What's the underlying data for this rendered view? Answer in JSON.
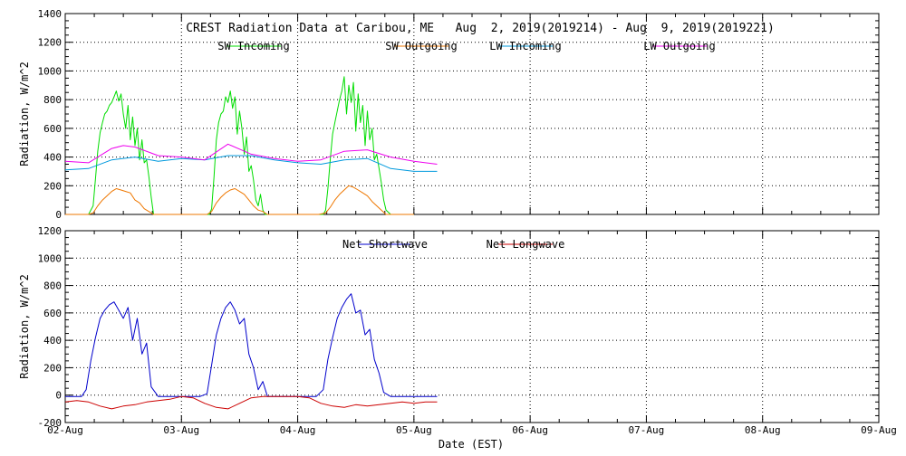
{
  "chart_data": [
    {
      "type": "line",
      "title": "CREST Radiation Data at Caribou, ME   Aug  2, 2019(2019214) - Aug  9, 2019(2019221)",
      "ylabel": "Radiation, W/m^2",
      "xlabel": "",
      "xlim": [
        0,
        7
      ],
      "ylim": [
        0,
        1400
      ],
      "yticks": [
        0,
        200,
        400,
        600,
        800,
        1000,
        1200,
        1400
      ],
      "grid": true,
      "legend": "top",
      "series": [
        {
          "name": "SW Incoming",
          "color": "#00dd00",
          "x": [
            0,
            0.08,
            0.12,
            0.16,
            0.2,
            0.24,
            0.26,
            0.28,
            0.3,
            0.32,
            0.34,
            0.36,
            0.38,
            0.4,
            0.42,
            0.44,
            0.46,
            0.48,
            0.5,
            0.52,
            0.54,
            0.56,
            0.58,
            0.6,
            0.62,
            0.64,
            0.66,
            0.68,
            0.7,
            0.72,
            0.74,
            0.76,
            0.8,
            1.0,
            1.08,
            1.16,
            1.2,
            1.24,
            1.26,
            1.28,
            1.3,
            1.32,
            1.34,
            1.36,
            1.38,
            1.4,
            1.42,
            1.44,
            1.46,
            1.48,
            1.5,
            1.52,
            1.54,
            1.56,
            1.58,
            1.6,
            1.62,
            1.64,
            1.66,
            1.68,
            1.7,
            1.72,
            1.74,
            1.76,
            1.8,
            2.0,
            2.08,
            2.14,
            2.18,
            2.22,
            2.24,
            2.26,
            2.28,
            2.3,
            2.32,
            2.34,
            2.36,
            2.38,
            2.4,
            2.42,
            2.44,
            2.46,
            2.48,
            2.5,
            2.52,
            2.54,
            2.56,
            2.58,
            2.6,
            2.62,
            2.64,
            2.66,
            2.68,
            2.7,
            2.72,
            2.74,
            2.76,
            2.8,
            3.0
          ],
          "values": [
            0,
            0,
            0,
            0,
            0,
            60,
            250,
            440,
            570,
            640,
            700,
            720,
            760,
            780,
            820,
            860,
            790,
            840,
            700,
            600,
            760,
            520,
            680,
            480,
            600,
            380,
            520,
            360,
            380,
            260,
            120,
            0,
            0,
            0,
            0,
            0,
            0,
            0,
            40,
            260,
            520,
            640,
            700,
            720,
            820,
            780,
            860,
            740,
            820,
            560,
            720,
            600,
            420,
            540,
            300,
            340,
            240,
            100,
            60,
            140,
            30,
            0,
            0,
            0,
            0,
            0,
            0,
            0,
            0,
            0,
            30,
            180,
            380,
            560,
            640,
            720,
            800,
            860,
            960,
            700,
            900,
            780,
            920,
            580,
            840,
            640,
            760,
            480,
            720,
            520,
            600,
            380,
            420,
            320,
            220,
            100,
            30,
            0,
            0
          ]
        },
        {
          "name": "SW Outgoing",
          "color": "#ee7700",
          "x": [
            0,
            0.08,
            0.14,
            0.2,
            0.24,
            0.28,
            0.32,
            0.36,
            0.4,
            0.44,
            0.48,
            0.52,
            0.56,
            0.6,
            0.64,
            0.68,
            0.72,
            0.76,
            0.8,
            1.0,
            1.16,
            1.22,
            1.26,
            1.3,
            1.34,
            1.38,
            1.42,
            1.46,
            1.5,
            1.54,
            1.58,
            1.62,
            1.66,
            1.7,
            1.74,
            1.8,
            2.0,
            2.18,
            2.24,
            2.28,
            2.32,
            2.36,
            2.4,
            2.44,
            2.48,
            2.52,
            2.56,
            2.6,
            2.64,
            2.68,
            2.72,
            2.76,
            2.8,
            3.0
          ],
          "values": [
            0,
            0,
            0,
            0,
            10,
            60,
            100,
            130,
            160,
            180,
            170,
            160,
            150,
            100,
            80,
            40,
            20,
            0,
            0,
            0,
            0,
            0,
            20,
            80,
            120,
            150,
            170,
            180,
            160,
            140,
            100,
            60,
            30,
            20,
            0,
            0,
            0,
            0,
            10,
            50,
            100,
            140,
            170,
            200,
            190,
            170,
            150,
            130,
            90,
            60,
            30,
            0,
            0,
            0
          ]
        },
        {
          "name": "LW Incoming",
          "color": "#0099dd",
          "x": [
            0,
            0.2,
            0.4,
            0.6,
            0.8,
            1.0,
            1.2,
            1.4,
            1.6,
            1.8,
            2.0,
            2.2,
            2.4,
            2.6,
            2.8,
            3.0,
            3.2
          ],
          "values": [
            310,
            320,
            380,
            400,
            370,
            390,
            380,
            410,
            410,
            380,
            360,
            350,
            380,
            390,
            320,
            300,
            300
          ]
        },
        {
          "name": "LW Outgoing",
          "color": "#ee00ee",
          "x": [
            0,
            0.2,
            0.4,
            0.5,
            0.6,
            0.8,
            1.0,
            1.2,
            1.4,
            1.6,
            1.8,
            2.0,
            2.2,
            2.4,
            2.6,
            2.8,
            3.0,
            3.2
          ],
          "values": [
            370,
            360,
            460,
            480,
            470,
            410,
            400,
            380,
            490,
            420,
            390,
            370,
            380,
            440,
            450,
            400,
            370,
            350
          ]
        }
      ]
    },
    {
      "type": "line",
      "ylabel": "Radiation, W/m^2",
      "xlabel": "Date (EST)",
      "xlim": [
        0,
        7
      ],
      "ylim": [
        -200,
        1200
      ],
      "yticks": [
        -200,
        0,
        200,
        400,
        600,
        800,
        1000,
        1200
      ],
      "xticks": [
        "02-Aug",
        "03-Aug",
        "04-Aug",
        "05-Aug",
        "06-Aug",
        "07-Aug",
        "08-Aug",
        "09-Aug"
      ],
      "grid": true,
      "legend": "top",
      "series": [
        {
          "name": "Net Shortwave",
          "color": "#0000cc",
          "x": [
            0,
            0.08,
            0.14,
            0.18,
            0.22,
            0.26,
            0.3,
            0.34,
            0.38,
            0.42,
            0.46,
            0.5,
            0.54,
            0.58,
            0.62,
            0.66,
            0.7,
            0.74,
            0.8,
            1.0,
            1.16,
            1.22,
            1.26,
            1.3,
            1.34,
            1.38,
            1.42,
            1.46,
            1.5,
            1.54,
            1.58,
            1.62,
            1.66,
            1.7,
            1.74,
            1.8,
            2.0,
            2.16,
            2.22,
            2.26,
            2.3,
            2.34,
            2.38,
            2.42,
            2.46,
            2.5,
            2.54,
            2.58,
            2.62,
            2.66,
            2.7,
            2.74,
            2.8,
            3.0,
            3.2
          ],
          "values": [
            -10,
            -10,
            -10,
            40,
            250,
            420,
            560,
            620,
            660,
            680,
            620,
            560,
            640,
            400,
            560,
            300,
            380,
            60,
            -10,
            -10,
            -10,
            10,
            220,
            440,
            560,
            640,
            680,
            620,
            520,
            560,
            300,
            200,
            40,
            100,
            -10,
            -10,
            -10,
            -10,
            40,
            260,
            420,
            560,
            640,
            700,
            740,
            600,
            620,
            440,
            480,
            260,
            160,
            20,
            -10,
            -10,
            -10
          ]
        },
        {
          "name": "Net Longwave",
          "color": "#cc0000",
          "x": [
            0,
            0.1,
            0.2,
            0.3,
            0.4,
            0.5,
            0.6,
            0.7,
            0.8,
            0.9,
            1.0,
            1.1,
            1.2,
            1.3,
            1.4,
            1.5,
            1.6,
            1.7,
            1.8,
            1.9,
            2.0,
            2.1,
            2.2,
            2.3,
            2.4,
            2.5,
            2.6,
            2.7,
            2.8,
            2.9,
            3.0,
            3.1,
            3.2
          ],
          "values": [
            -50,
            -40,
            -50,
            -80,
            -100,
            -80,
            -70,
            -50,
            -40,
            -30,
            -10,
            -20,
            -60,
            -90,
            -100,
            -60,
            -20,
            -10,
            -10,
            -10,
            -10,
            -20,
            -60,
            -80,
            -90,
            -70,
            -80,
            -70,
            -60,
            -50,
            -60,
            -50,
            -50
          ]
        }
      ]
    }
  ]
}
